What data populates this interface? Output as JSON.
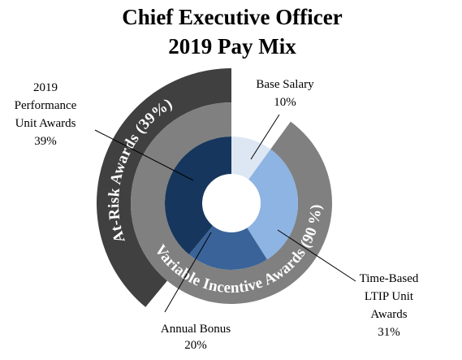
{
  "chart_data": {
    "type": "pie",
    "title_lines": [
      "Chief Executive Officer",
      "2019 Pay Mix"
    ],
    "start_angle_deg": 0,
    "direction": "clockwise",
    "inner_ring": [
      {
        "label_lines": [
          "Base Salary",
          "10%"
        ],
        "value": 10,
        "color": "#dde6f3",
        "label_pos": "top-right"
      },
      {
        "label_lines": [
          "Time-Based",
          "LTIP Unit",
          "Awards",
          "31%"
        ],
        "value": 31,
        "color": "#8db4e2",
        "label_pos": "bottom-right"
      },
      {
        "label_lines": [
          "Annual Bonus",
          "20%"
        ],
        "value": 20,
        "color": "#3a6399",
        "label_pos": "bottom"
      },
      {
        "label_lines": [
          "2019",
          "Performance",
          "Unit Awards",
          "39%"
        ],
        "value": 39,
        "color": "#17365d",
        "label_pos": "top-left"
      }
    ],
    "middle_ring": {
      "label": "Variable Incentive Awards (90 %)",
      "value": 90,
      "start_value": 10,
      "color": "#808080"
    },
    "outer_ring": {
      "label": "At-Risk Awards (39%)",
      "value": 39,
      "start_value": 61,
      "color": "#404040"
    }
  }
}
